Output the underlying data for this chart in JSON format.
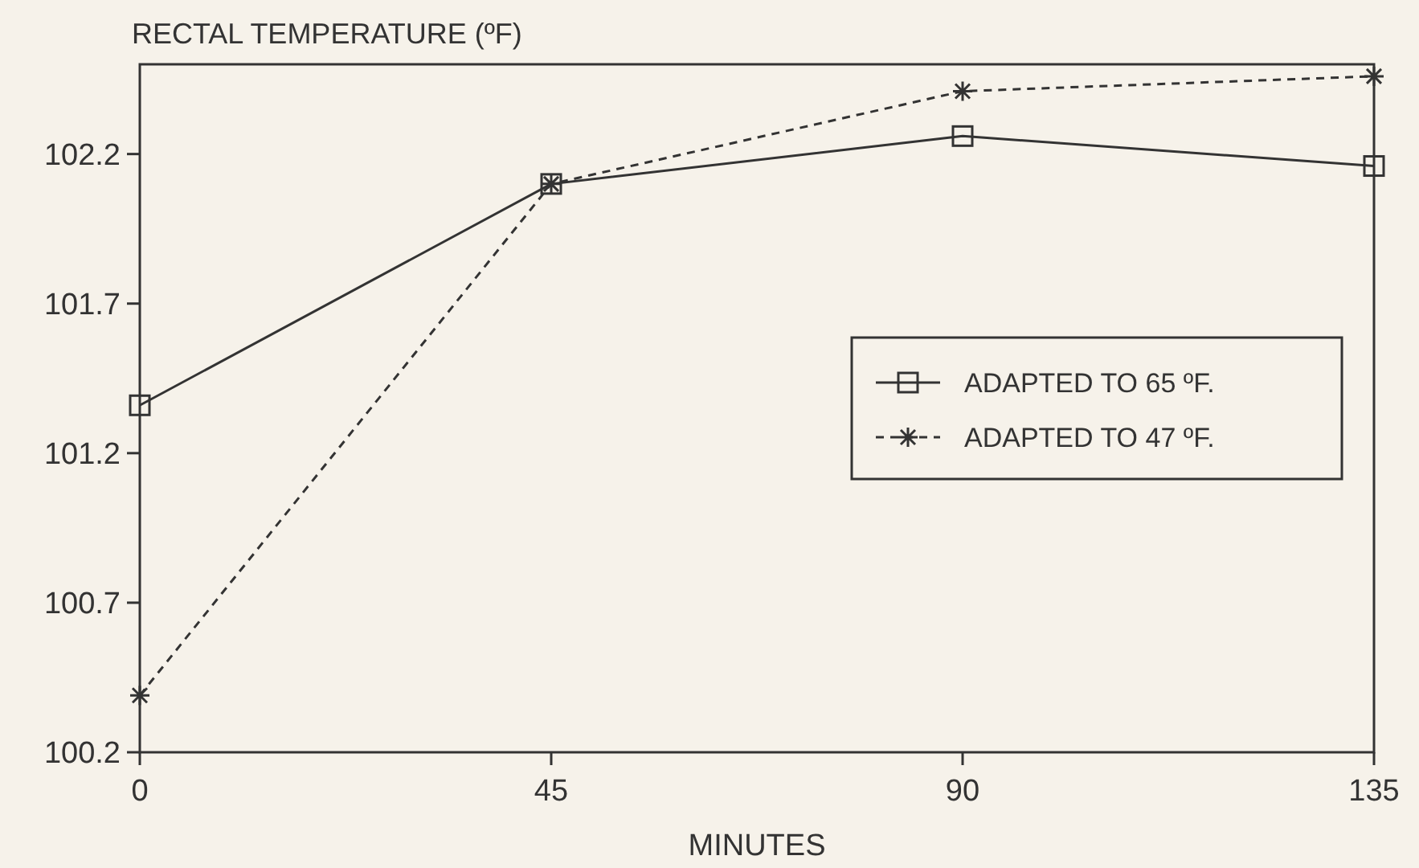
{
  "chart_data": {
    "type": "line",
    "ylabel": "RECTAL TEMPERATURE (ºF)",
    "xlabel": "MINUTES",
    "x": [
      0,
      45,
      90,
      135
    ],
    "series": [
      {
        "name": "ADAPTED TO 65 ºF.",
        "color": "#333333",
        "values": [
          101.36,
          102.1,
          102.26,
          102.16
        ],
        "marker": "square",
        "line_style": "solid"
      },
      {
        "name": "ADAPTED TO 47 ºF.",
        "color": "#333333",
        "values": [
          100.39,
          102.1,
          102.41,
          102.46
        ],
        "marker": "cross",
        "line_style": "dashed"
      }
    ],
    "xlim": [
      0,
      135
    ],
    "xticks": [
      0,
      45,
      90,
      135
    ],
    "ylim": [
      100.2,
      102.5
    ],
    "yticks": [
      100.2,
      100.7,
      101.2,
      101.7,
      102.2
    ],
    "grid": false,
    "legend": "right"
  }
}
